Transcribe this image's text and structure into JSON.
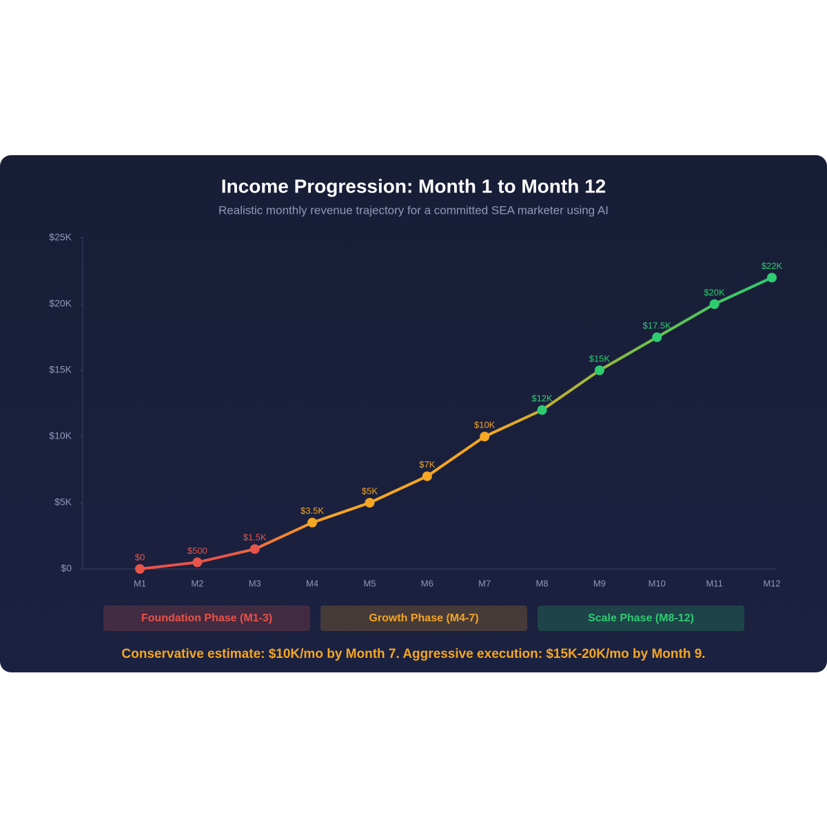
{
  "chart_data": {
    "type": "line",
    "title": "Income Progression: Month 1 to Month 12",
    "subtitle": "Realistic monthly revenue trajectory for a committed SEA marketer using AI",
    "categories": [
      "M1",
      "M2",
      "M3",
      "M4",
      "M5",
      "M6",
      "M7",
      "M8",
      "M9",
      "M10",
      "M11",
      "M12"
    ],
    "values": [
      0,
      500,
      1500,
      3500,
      5000,
      7000,
      10000,
      12000,
      15000,
      17500,
      20000,
      22000
    ],
    "value_labels": [
      "$0",
      "$500",
      "$1.5K",
      "$3.5K",
      "$5K",
      "$7K",
      "$10K",
      "$12K",
      "$15K",
      "$17.5K",
      "$20K",
      "$22K"
    ],
    "point_colors": [
      "#e8534a",
      "#e8534a",
      "#e8534a",
      "#f5a623",
      "#f5a623",
      "#f5a623",
      "#f5a623",
      "#2ecc71",
      "#2ecc71",
      "#2ecc71",
      "#2ecc71",
      "#2ecc71"
    ],
    "ylim": [
      0,
      25000
    ],
    "yticks": [
      {
        "value": 0,
        "label": "$0"
      },
      {
        "value": 5000,
        "label": "$5K"
      },
      {
        "value": 10000,
        "label": "$10K"
      },
      {
        "value": 15000,
        "label": "$15K"
      },
      {
        "value": 20000,
        "label": "$20K"
      },
      {
        "value": 25000,
        "label": "$25K"
      }
    ],
    "phases": [
      {
        "label": "Foundation Phase (M1-3)",
        "color": "#e8534a"
      },
      {
        "label": "Growth Phase (M4-7)",
        "color": "#f5a623"
      },
      {
        "label": "Scale Phase (M8-12)",
        "color": "#2ecc71"
      }
    ],
    "footnote": "Conservative estimate: $10K/mo by Month 7. Aggressive execution: $15K-20K/mo by Month 9."
  }
}
